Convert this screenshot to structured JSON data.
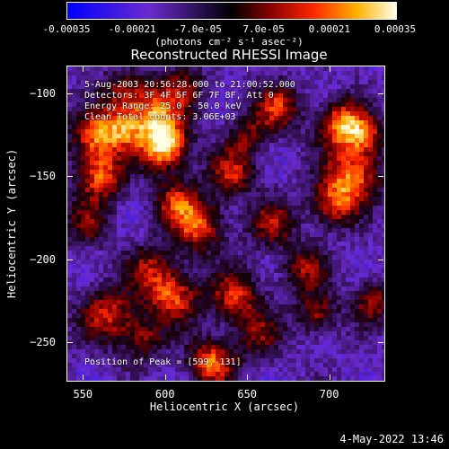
{
  "chart_data": {
    "type": "heatmap",
    "title": "Reconstructed RHESSI Image",
    "xlabel": "Heliocentric X (arcsec)",
    "ylabel": "Heliocentric Y (arcsec)",
    "xlim": [
      540,
      733
    ],
    "ylim": [
      -273,
      -83
    ],
    "x_ticks": [
      550,
      600,
      650,
      700
    ],
    "y_ticks": [
      -100,
      -150,
      -200,
      -250
    ],
    "colorbar": {
      "ticks": [
        "-0.00035",
        "-0.00021",
        "-7.0e-05",
        "7.0e-05",
        "0.00021",
        "0.00035"
      ],
      "label": "(photons cm⁻² s⁻¹ asec⁻²)",
      "range": [
        -0.00035,
        0.00035
      ]
    },
    "annotations": [
      "5-Aug-2003 20:56:28.000 to 21:00:52.000",
      "Detectors: 3F 4F 5F 6F 7F 8F, Att 0",
      "Energy Range: 25.0 - 50.0 keV",
      "Clean    Total counts: 3.06E+03"
    ],
    "peak_label": "Position of Peak = [599,-131]",
    "peak": [
      599,
      -131
    ],
    "blobs": [
      {
        "x": 599,
        "y": -131,
        "a": 1.0,
        "s": 10
      },
      {
        "x": 594,
        "y": -110,
        "a": 0.7,
        "s": 12
      },
      {
        "x": 558,
        "y": -125,
        "a": 0.75,
        "s": 11
      },
      {
        "x": 560,
        "y": -150,
        "a": 0.7,
        "s": 10
      },
      {
        "x": 575,
        "y": -120,
        "a": 0.5,
        "s": 9
      },
      {
        "x": 620,
        "y": -180,
        "a": 0.65,
        "s": 11
      },
      {
        "x": 606,
        "y": -165,
        "a": 0.55,
        "s": 10
      },
      {
        "x": 604,
        "y": -222,
        "a": 0.7,
        "s": 11
      },
      {
        "x": 590,
        "y": -205,
        "a": 0.45,
        "s": 10
      },
      {
        "x": 565,
        "y": -233,
        "a": 0.6,
        "s": 12
      },
      {
        "x": 552,
        "y": -178,
        "a": 0.4,
        "s": 10
      },
      {
        "x": 640,
        "y": -148,
        "a": 0.55,
        "s": 10
      },
      {
        "x": 650,
        "y": -125,
        "a": 0.4,
        "s": 9
      },
      {
        "x": 668,
        "y": -108,
        "a": 0.6,
        "s": 10
      },
      {
        "x": 664,
        "y": -178,
        "a": 0.5,
        "s": 10
      },
      {
        "x": 708,
        "y": -118,
        "a": 0.85,
        "s": 10
      },
      {
        "x": 714,
        "y": -148,
        "a": 0.75,
        "s": 12
      },
      {
        "x": 702,
        "y": -166,
        "a": 0.6,
        "s": 10
      },
      {
        "x": 722,
        "y": -125,
        "a": 0.5,
        "s": 8
      },
      {
        "x": 642,
        "y": -222,
        "a": 0.6,
        "s": 11
      },
      {
        "x": 657,
        "y": -245,
        "a": 0.4,
        "s": 10
      },
      {
        "x": 628,
        "y": -262,
        "a": 0.75,
        "s": 10
      },
      {
        "x": 586,
        "y": -248,
        "a": 0.45,
        "s": 9
      },
      {
        "x": 684,
        "y": -205,
        "a": 0.45,
        "s": 10
      },
      {
        "x": 692,
        "y": -232,
        "a": 0.5,
        "s": 9
      },
      {
        "x": 726,
        "y": -225,
        "a": 0.5,
        "s": 9
      },
      {
        "x": 574,
        "y": -98,
        "a": 0.45,
        "s": 9
      },
      {
        "x": 612,
        "y": -95,
        "a": 0.35,
        "s": 9
      }
    ]
  },
  "footer": "4-May-2022 13:46"
}
